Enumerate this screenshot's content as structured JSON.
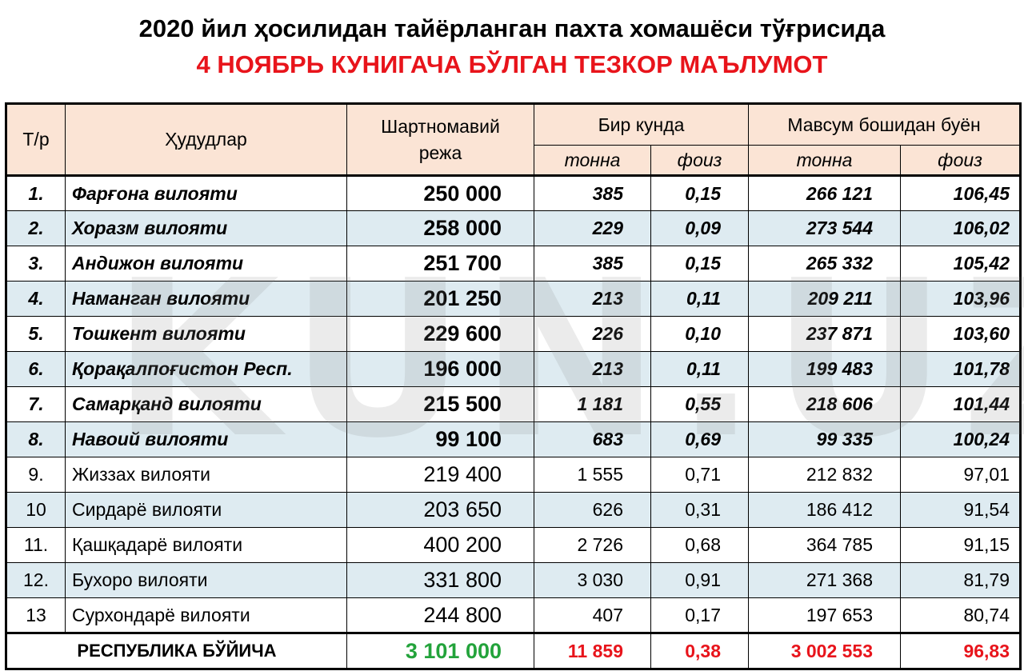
{
  "title": "2020 йил ҳосилидан тайёрланган пахта хомашёси тўғрисида",
  "subtitle": "4 НОЯБРЬ КУНИГАЧА БЎЛГАН ТЕЗКОР МАЪЛУМОТ",
  "watermark": "KUN.UZ",
  "header": {
    "num": "Т/р",
    "region": "Ҳудудлар",
    "plan_line1": "Шартномавий",
    "plan_line2": "режа",
    "day": "Бир кунда",
    "season": "Мавсум бошидан буён",
    "tonna": "тонна",
    "foiz": "фоиз"
  },
  "rows": [
    {
      "num": "1.",
      "name": "Фарғона вилояти",
      "plan": "250 000",
      "day_t": "385",
      "day_p": "0,15",
      "season_t": "266 121",
      "season_p": "106,45"
    },
    {
      "num": "2.",
      "name": "Хоразм вилояти",
      "plan": "258 000",
      "day_t": "229",
      "day_p": "0,09",
      "season_t": "273 544",
      "season_p": "106,02"
    },
    {
      "num": "3.",
      "name": "Андижон вилояти",
      "plan": "251 700",
      "day_t": "385",
      "day_p": "0,15",
      "season_t": "265 332",
      "season_p": "105,42"
    },
    {
      "num": "4.",
      "name": "Наманган вилояти",
      "plan": "201 250",
      "day_t": "213",
      "day_p": "0,11",
      "season_t": "209 211",
      "season_p": "103,96"
    },
    {
      "num": "5.",
      "name": "Тошкент вилояти",
      "plan": "229 600",
      "day_t": "226",
      "day_p": "0,10",
      "season_t": "237 871",
      "season_p": "103,60"
    },
    {
      "num": "6.",
      "name": "Қорақалпоғистон Респ.",
      "plan": "196 000",
      "day_t": "213",
      "day_p": "0,11",
      "season_t": "199 483",
      "season_p": "101,78"
    },
    {
      "num": "7.",
      "name": "Самарқанд вилояти",
      "plan": "215 500",
      "day_t": "1 181",
      "day_p": "0,55",
      "season_t": "218 606",
      "season_p": "101,44"
    },
    {
      "num": "8.",
      "name": "Навоий вилояти",
      "plan": "99 100",
      "day_t": "683",
      "day_p": "0,69",
      "season_t": "99 335",
      "season_p": "100,24"
    },
    {
      "num": "9.",
      "name": "Жиззах вилояти",
      "plan": "219 400",
      "day_t": "1 555",
      "day_p": "0,71",
      "season_t": "212 832",
      "season_p": "97,01"
    },
    {
      "num": "10",
      "name": "Сирдарё вилояти",
      "plan": "203 650",
      "day_t": "626",
      "day_p": "0,31",
      "season_t": "186 412",
      "season_p": "91,54"
    },
    {
      "num": "11.",
      "name": "Қашқадарё вилояти",
      "plan": "400 200",
      "day_t": "2 726",
      "day_p": "0,68",
      "season_t": "364 785",
      "season_p": "91,15"
    },
    {
      "num": "12.",
      "name": "Бухоро вилояти",
      "plan": "331 800",
      "day_t": "3 030",
      "day_p": "0,91",
      "season_t": "271 368",
      "season_p": "81,79"
    },
    {
      "num": "13",
      "name": "Сурхондарё вилояти",
      "plan": "244 800",
      "day_t": "407",
      "day_p": "0,17",
      "season_t": "197 653",
      "season_p": "80,74"
    }
  ],
  "total": {
    "label": "РЕСПУБЛИКА БЎЙИЧА",
    "plan": "3 101 000",
    "day_t": "11 859",
    "day_p": "0,38",
    "season_t": "3 002 553",
    "season_p": "96,83"
  },
  "colors": {
    "header_bg": "#fbe4d5",
    "alt_row_bg": "#deebf1",
    "red": "#e8141b",
    "green": "#23a33b"
  }
}
